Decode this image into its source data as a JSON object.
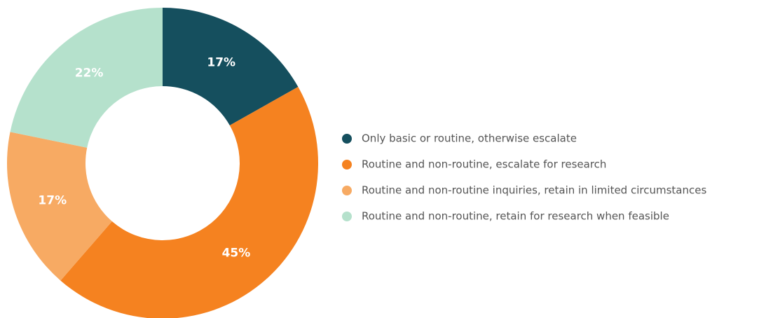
{
  "chart_data": {
    "type": "donut",
    "categories": [
      "Only basic or routine, otherwise escalate",
      "Routine and non-routine, escalate for research",
      "Routine and non-routine inquiries, retain in limited circumstances",
      "Routine and non-routine, retain for research when feasible"
    ],
    "values": [
      17,
      45,
      17,
      22
    ],
    "value_labels": [
      "17%",
      "45%",
      "17%",
      "22%"
    ],
    "colors": [
      "#154f5e",
      "#f58220",
      "#f7aa63",
      "#b5e1cc"
    ],
    "legend": "right"
  }
}
